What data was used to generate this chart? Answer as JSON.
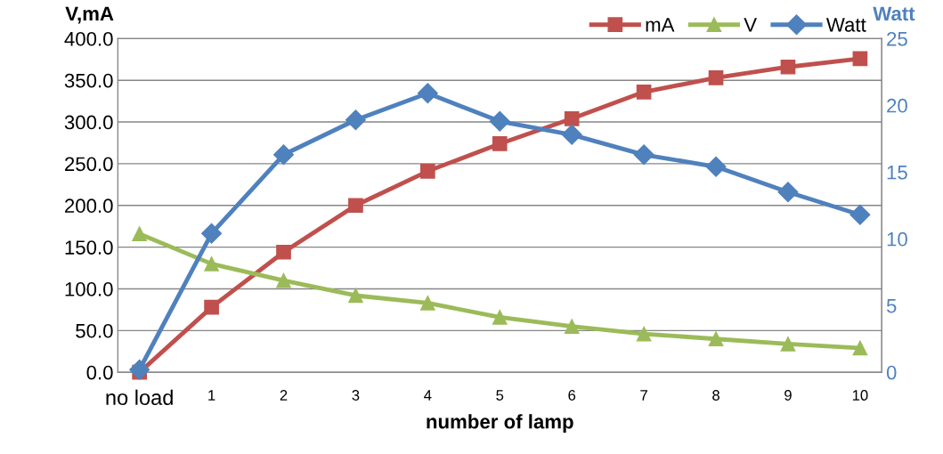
{
  "chart_data": {
    "type": "line",
    "xlabel": "number of lamp",
    "ylabel": "V,mA",
    "y2label": "Watt",
    "categories": [
      "no load",
      "1",
      "2",
      "3",
      "4",
      "5",
      "6",
      "7",
      "8",
      "9",
      "10"
    ],
    "series": [
      {
        "name": "mA",
        "color": "#c0504d",
        "marker": "square",
        "values": [
          0,
          78,
          144,
          200,
          241,
          274,
          304,
          336,
          353,
          366,
          376
        ]
      },
      {
        "name": "V",
        "color": "#9bbb59",
        "marker": "triangle",
        "values": [
          166,
          130,
          110,
          92,
          83,
          66,
          55,
          46,
          40,
          34,
          29
        ]
      },
      {
        "name": "Watt",
        "color": "#4f81bd",
        "marker": "diamond",
        "axis": "y2",
        "values": [
          0.2,
          10.4,
          16.3,
          18.9,
          20.9,
          18.8,
          17.8,
          16.3,
          15.4,
          13.5,
          11.8
        ]
      }
    ],
    "ylim": [
      0,
      400
    ],
    "yticks": [
      {
        "value": 0,
        "label": "0.0"
      },
      {
        "value": 50,
        "label": "50.0"
      },
      {
        "value": 100,
        "label": "100.0"
      },
      {
        "value": 150,
        "label": "150.0"
      },
      {
        "value": 200,
        "label": "200.0"
      },
      {
        "value": 250,
        "label": "250.0"
      },
      {
        "value": 300,
        "label": "300.0"
      },
      {
        "value": 350,
        "label": "350.0"
      },
      {
        "value": 400,
        "label": "400.0"
      }
    ],
    "y2lim": [
      0,
      25
    ],
    "y2ticks": [
      0,
      5,
      10,
      15,
      20,
      25
    ],
    "grid": "y",
    "legend": "top right",
    "line_style": "solid"
  }
}
